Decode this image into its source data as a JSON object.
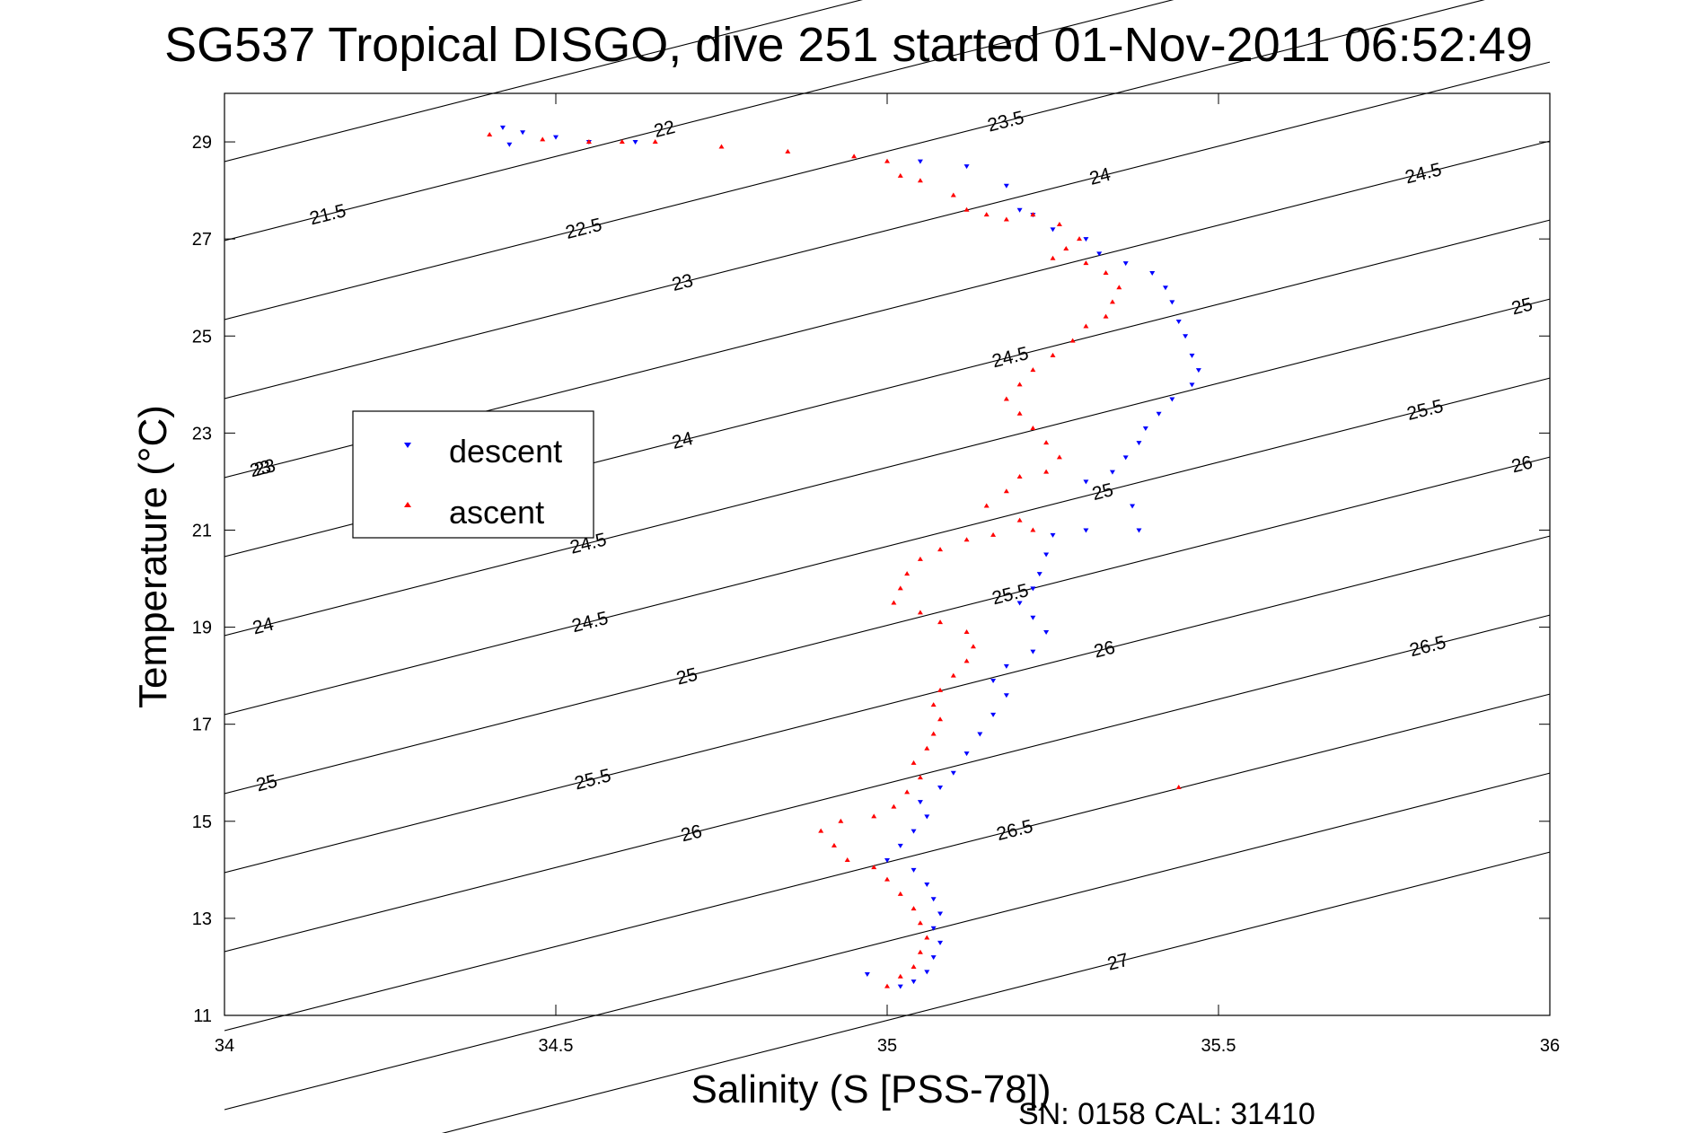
{
  "chart_data": {
    "type": "scatter",
    "title": "SG537 Tropical DISGO, dive 251 started 01-Nov-2011 06:52:49",
    "xlabel": "Salinity (S [PSS-78])",
    "ylabel": "Temperature (°C)",
    "xlim": [
      34,
      36
    ],
    "ylim": [
      11,
      30
    ],
    "x_ticks": [
      "34",
      "34.5",
      "35",
      "35.5",
      "36"
    ],
    "y_ticks": [
      "11",
      "13",
      "15",
      "17",
      "19",
      "21",
      "23",
      "25",
      "27",
      "29"
    ],
    "grid": false,
    "legend_position": "upper-left",
    "contour_labels": [
      "21.5",
      "22",
      "22.5",
      "23",
      "23.5",
      "24",
      "24.5",
      "25",
      "25.5",
      "26",
      "26.5",
      "27"
    ],
    "series": [
      {
        "name": "descent",
        "color": "#0000ff",
        "marker": "triangle-down",
        "points": [
          [
            34.42,
            29.3
          ],
          [
            34.45,
            29.2
          ],
          [
            34.5,
            29.1
          ],
          [
            34.43,
            28.95
          ],
          [
            34.55,
            29.0
          ],
          [
            34.62,
            29.0
          ],
          [
            35.05,
            28.6
          ],
          [
            35.12,
            28.5
          ],
          [
            35.18,
            28.1
          ],
          [
            35.2,
            27.6
          ],
          [
            35.22,
            27.5
          ],
          [
            35.25,
            27.2
          ],
          [
            35.3,
            27.0
          ],
          [
            35.32,
            26.7
          ],
          [
            35.36,
            26.5
          ],
          [
            35.4,
            26.3
          ],
          [
            35.42,
            26.0
          ],
          [
            35.43,
            25.7
          ],
          [
            35.44,
            25.3
          ],
          [
            35.45,
            25.0
          ],
          [
            35.46,
            24.6
          ],
          [
            35.47,
            24.3
          ],
          [
            35.46,
            24.0
          ],
          [
            35.43,
            23.7
          ],
          [
            35.41,
            23.4
          ],
          [
            35.39,
            23.1
          ],
          [
            35.38,
            22.8
          ],
          [
            35.36,
            22.5
          ],
          [
            35.34,
            22.2
          ],
          [
            35.3,
            22.0
          ],
          [
            35.37,
            21.5
          ],
          [
            35.38,
            21.0
          ],
          [
            35.3,
            21.0
          ],
          [
            35.25,
            20.9
          ],
          [
            35.24,
            20.5
          ],
          [
            35.23,
            20.1
          ],
          [
            35.22,
            19.8
          ],
          [
            35.2,
            19.5
          ],
          [
            35.22,
            19.2
          ],
          [
            35.24,
            18.9
          ],
          [
            35.22,
            18.5
          ],
          [
            35.18,
            18.2
          ],
          [
            35.16,
            17.9
          ],
          [
            35.18,
            17.6
          ],
          [
            35.16,
            17.2
          ],
          [
            35.14,
            16.8
          ],
          [
            35.12,
            16.4
          ],
          [
            35.1,
            16.0
          ],
          [
            35.08,
            15.7
          ],
          [
            35.05,
            15.4
          ],
          [
            35.06,
            15.1
          ],
          [
            35.04,
            14.8
          ],
          [
            35.02,
            14.5
          ],
          [
            35.0,
            14.2
          ],
          [
            35.04,
            14.0
          ],
          [
            35.06,
            13.7
          ],
          [
            35.07,
            13.4
          ],
          [
            35.08,
            13.1
          ],
          [
            35.07,
            12.8
          ],
          [
            35.08,
            12.5
          ],
          [
            35.07,
            12.2
          ],
          [
            35.06,
            11.9
          ],
          [
            35.04,
            11.7
          ],
          [
            35.02,
            11.6
          ],
          [
            34.97,
            11.85
          ]
        ]
      },
      {
        "name": "ascent",
        "color": "#ff0000",
        "marker": "triangle-up",
        "points": [
          [
            34.4,
            29.15
          ],
          [
            34.48,
            29.05
          ],
          [
            34.55,
            29.0
          ],
          [
            34.6,
            29.0
          ],
          [
            34.65,
            29.0
          ],
          [
            34.75,
            28.9
          ],
          [
            34.85,
            28.8
          ],
          [
            34.95,
            28.7
          ],
          [
            35.0,
            28.6
          ],
          [
            35.02,
            28.3
          ],
          [
            35.05,
            28.2
          ],
          [
            35.1,
            27.9
          ],
          [
            35.12,
            27.6
          ],
          [
            35.15,
            27.5
          ],
          [
            35.18,
            27.4
          ],
          [
            35.22,
            27.5
          ],
          [
            35.26,
            27.3
          ],
          [
            35.29,
            27.0
          ],
          [
            35.27,
            26.8
          ],
          [
            35.25,
            26.6
          ],
          [
            35.3,
            26.5
          ],
          [
            35.33,
            26.3
          ],
          [
            35.35,
            26.0
          ],
          [
            35.34,
            25.7
          ],
          [
            35.33,
            25.4
          ],
          [
            35.3,
            25.2
          ],
          [
            35.28,
            24.9
          ],
          [
            35.25,
            24.6
          ],
          [
            35.22,
            24.3
          ],
          [
            35.2,
            24.0
          ],
          [
            35.18,
            23.7
          ],
          [
            35.2,
            23.4
          ],
          [
            35.22,
            23.1
          ],
          [
            35.24,
            22.8
          ],
          [
            35.26,
            22.5
          ],
          [
            35.24,
            22.2
          ],
          [
            35.2,
            22.1
          ],
          [
            35.18,
            21.8
          ],
          [
            35.15,
            21.5
          ],
          [
            35.2,
            21.2
          ],
          [
            35.22,
            21.0
          ],
          [
            35.16,
            20.9
          ],
          [
            35.12,
            20.8
          ],
          [
            35.08,
            20.6
          ],
          [
            35.05,
            20.4
          ],
          [
            35.03,
            20.1
          ],
          [
            35.02,
            19.8
          ],
          [
            35.01,
            19.5
          ],
          [
            35.05,
            19.3
          ],
          [
            35.08,
            19.1
          ],
          [
            35.12,
            18.9
          ],
          [
            35.13,
            18.6
          ],
          [
            35.12,
            18.3
          ],
          [
            35.1,
            18.0
          ],
          [
            35.08,
            17.7
          ],
          [
            35.07,
            17.4
          ],
          [
            35.08,
            17.1
          ],
          [
            35.07,
            16.8
          ],
          [
            35.06,
            16.5
          ],
          [
            35.04,
            16.2
          ],
          [
            35.05,
            15.9
          ],
          [
            35.03,
            15.6
          ],
          [
            35.01,
            15.3
          ],
          [
            34.98,
            15.1
          ],
          [
            34.93,
            15.0
          ],
          [
            34.9,
            14.8
          ],
          [
            34.92,
            14.5
          ],
          [
            34.94,
            14.2
          ],
          [
            34.98,
            14.05
          ],
          [
            35.0,
            13.8
          ],
          [
            35.02,
            13.5
          ],
          [
            35.04,
            13.2
          ],
          [
            35.05,
            12.9
          ],
          [
            35.06,
            12.6
          ],
          [
            35.05,
            12.3
          ],
          [
            35.04,
            12.0
          ],
          [
            35.02,
            11.8
          ],
          [
            35.0,
            11.6
          ],
          [
            35.44,
            15.7
          ]
        ]
      }
    ]
  },
  "footer": {
    "text": "SN: 0158  CAL: 31410"
  }
}
